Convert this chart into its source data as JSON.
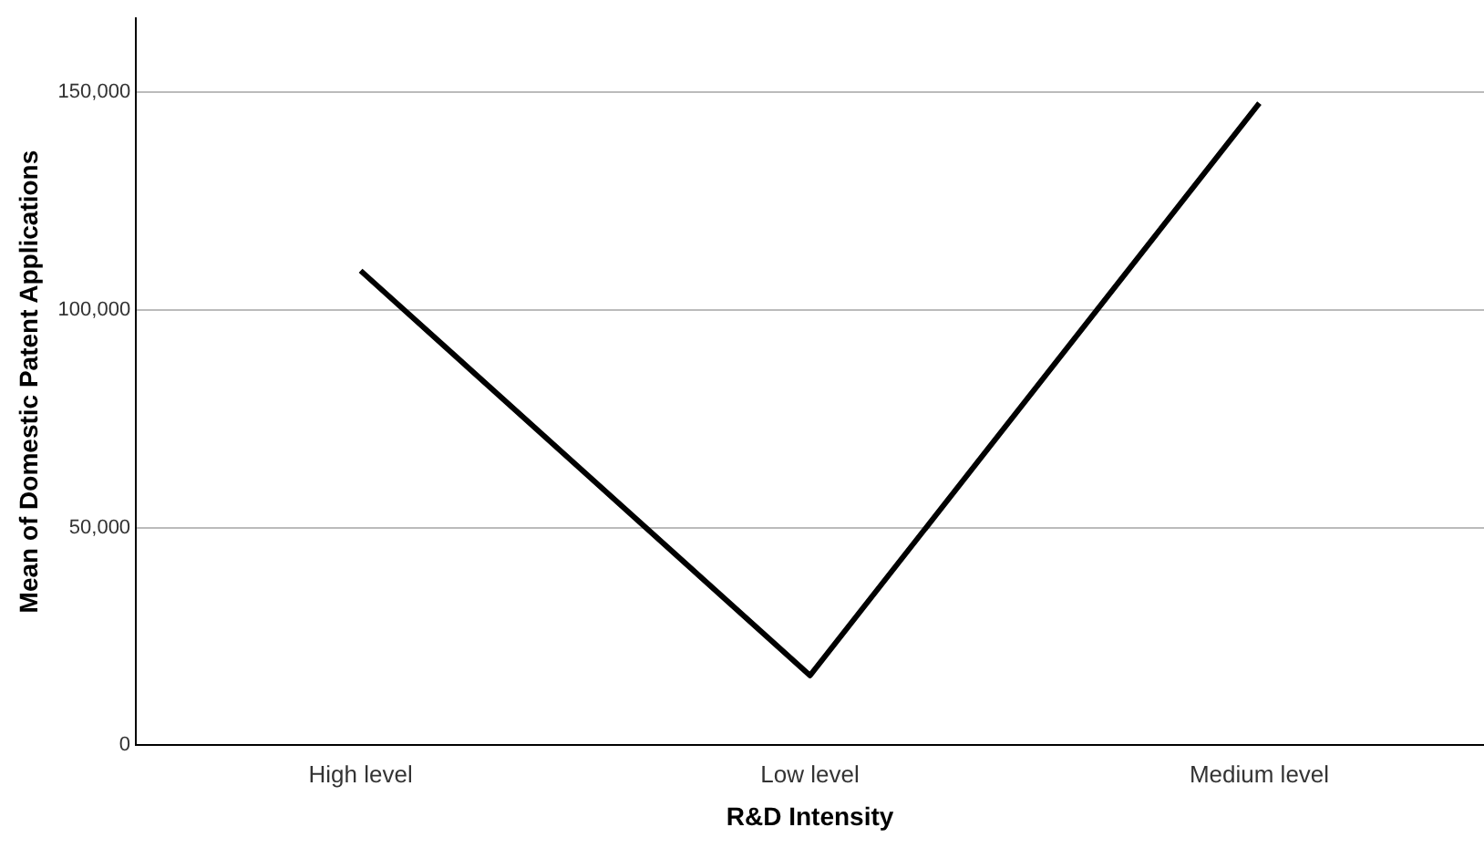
{
  "chart_data": {
    "type": "line",
    "xlabel": "R&D Intensity",
    "ylabel": "Mean of Domestic Patent Applications",
    "categories": [
      "High level",
      "Low level",
      "Medium level"
    ],
    "series": [
      {
        "color": "#000000",
        "values": [
          109000,
          16000,
          147500
        ]
      }
    ],
    "ylim": [
      0,
      167000
    ],
    "yticks": [
      {
        "value": 0,
        "label": "0"
      },
      {
        "value": 50000,
        "label": "50,000"
      },
      {
        "value": 100000,
        "label": "100,000"
      },
      {
        "value": 150000,
        "label": "150,000"
      }
    ],
    "grid": "y",
    "legend": false,
    "marker": "none",
    "line_style": "solid"
  }
}
